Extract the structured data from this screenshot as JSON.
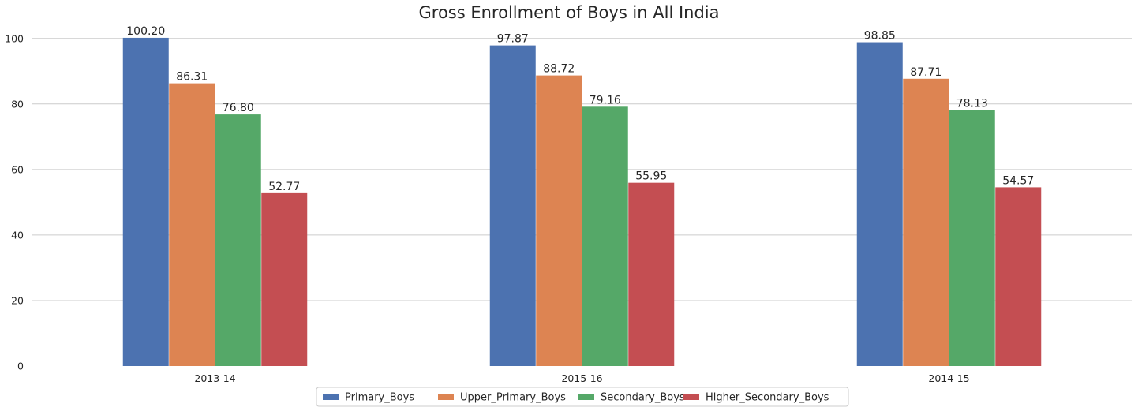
{
  "chart_data": {
    "type": "bar",
    "title": "Gross Enrollment of Boys in All India",
    "xlabel": "",
    "ylabel": "",
    "categories": [
      "2013-14",
      "2015-16",
      "2014-15"
    ],
    "series": [
      {
        "name": "Primary_Boys",
        "color": "#4c72b0",
        "values": [
          100.2,
          97.87,
          98.85
        ]
      },
      {
        "name": "Upper_Primary_Boys",
        "color": "#dd8452",
        "values": [
          86.31,
          88.72,
          87.71
        ]
      },
      {
        "name": "Secondary_Boys",
        "color": "#55a868",
        "values": [
          76.8,
          79.16,
          78.13
        ]
      },
      {
        "name": "Higher_Secondary_Boys",
        "color": "#c44e52",
        "values": [
          52.77,
          55.95,
          54.57
        ]
      }
    ],
    "data_labels": [
      [
        "100.20",
        "97.87",
        "98.85"
      ],
      [
        "86.31",
        "88.72",
        "87.71"
      ],
      [
        "76.80",
        "79.16",
        "78.13"
      ],
      [
        "52.77",
        "55.95",
        "54.57"
      ]
    ],
    "ylim": [
      0,
      105
    ],
    "yticks": [
      0,
      20,
      40,
      60,
      80,
      100
    ],
    "grid": true,
    "legend_position": "bottom-center"
  }
}
